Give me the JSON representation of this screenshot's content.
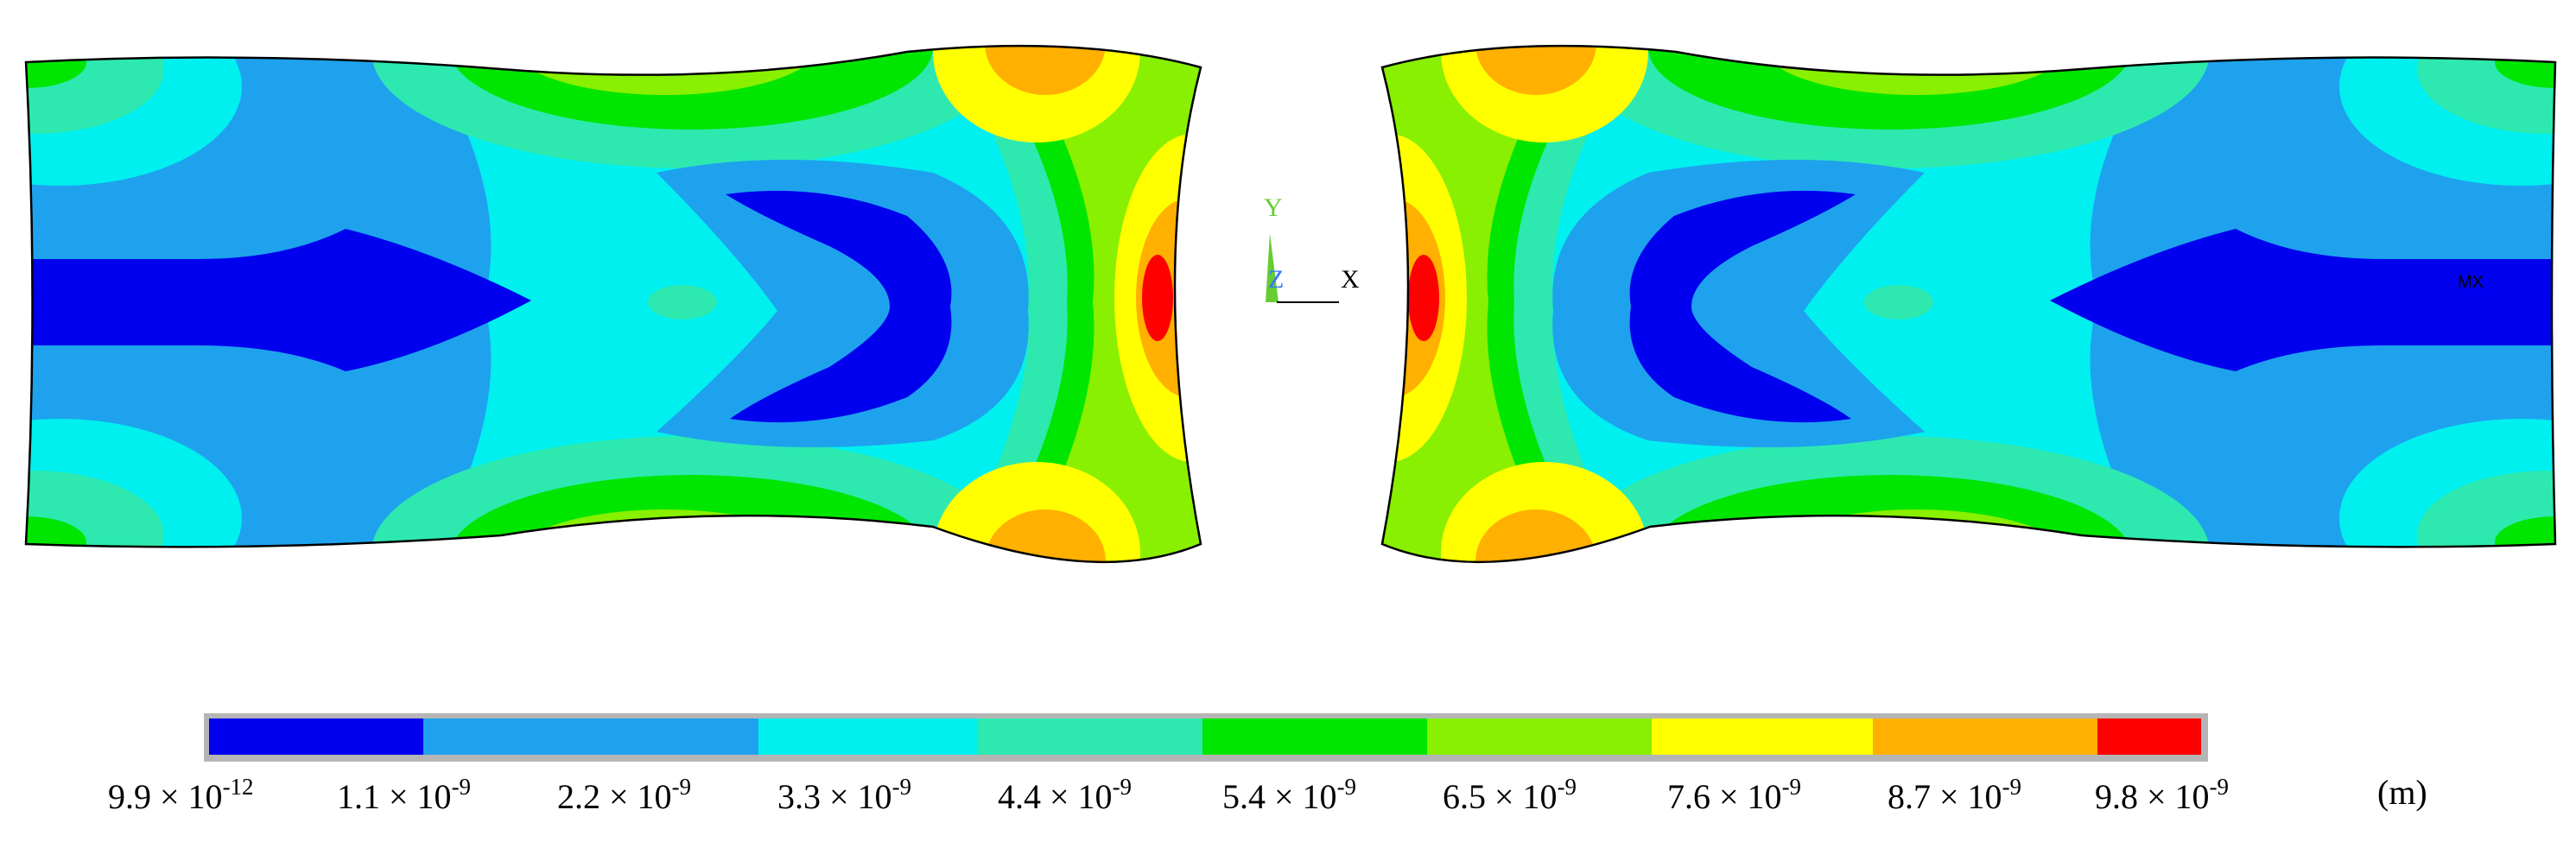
{
  "legend": {
    "unit": "(m)",
    "bands": [
      {
        "color": "#0000ee",
        "label_mant": "9.9 × 10",
        "label_exp": "-12"
      },
      {
        "color": "#1ea2ee",
        "label_mant": "1.1 × 10",
        "label_exp": "-9"
      },
      {
        "color": "#00f0f0",
        "label_mant": "2.2 × 10",
        "label_exp": "-9"
      },
      {
        "color": "#2de9b0",
        "label_mant": "3.3 × 10",
        "label_exp": "-9"
      },
      {
        "color": "#00e600",
        "label_mant": "4.4 × 10",
        "label_exp": "-9"
      },
      {
        "color": "#88f000",
        "label_mant": "5.4 × 10",
        "label_exp": "-9"
      },
      {
        "color": "#ffff00",
        "label_mant": "6.5 × 10",
        "label_exp": "-9"
      },
      {
        "color": "#ffb000",
        "label_mant": "7.6 × 10",
        "label_exp": "-9"
      },
      {
        "color": "#ff0000",
        "label_mant": "8.7 × 10",
        "label_exp": "-9"
      },
      {
        "color": null,
        "label_mant": "9.8 × 10",
        "label_exp": "-9"
      }
    ]
  },
  "triad": {
    "y": "Y",
    "z": "Z",
    "x": "X"
  },
  "marker": "MX",
  "colors": {
    "blue": "#0000ee",
    "sky": "#1ea2ee",
    "cyan": "#00f0f0",
    "aqua": "#2de9b0",
    "green": "#00e600",
    "lime": "#88f000",
    "yellow": "#ffff00",
    "orange": "#ffb000",
    "red": "#ff0000",
    "outline": "#000000",
    "triad_y": "#66cc33",
    "triad_z": "#3377ff"
  }
}
